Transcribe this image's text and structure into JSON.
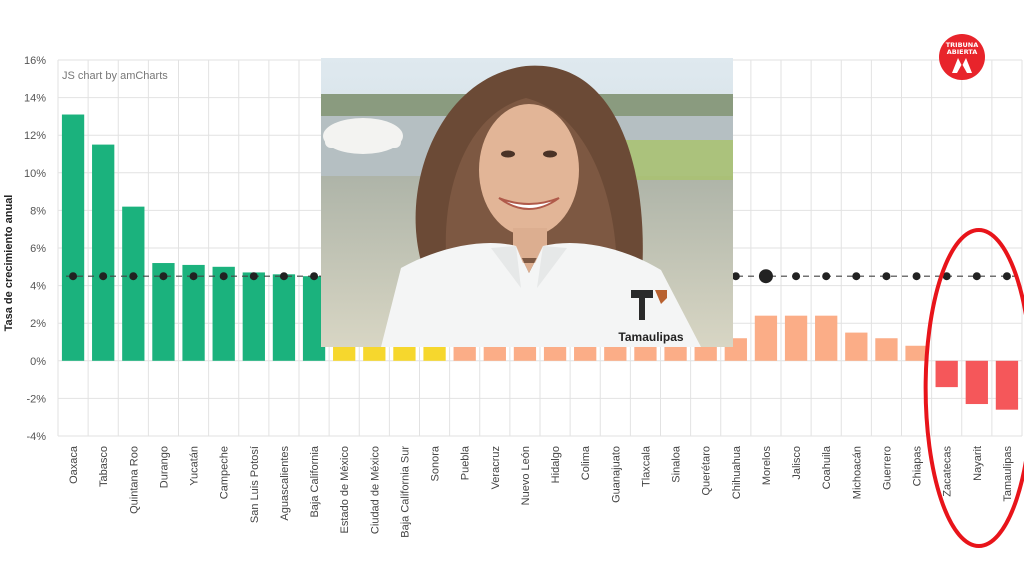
{
  "chart_data": {
    "type": "bar",
    "ylabel": "Tasa de crecimiento anual",
    "ylim": [
      -4,
      16
    ],
    "yticks": [
      -4,
      -2,
      0,
      2,
      4,
      6,
      8,
      10,
      12,
      14,
      16
    ],
    "ytick_labels": [
      "-4%",
      "-2%",
      "0%",
      "2%",
      "4%",
      "6%",
      "8%",
      "10%",
      "12%",
      "14%",
      "16%"
    ],
    "categories": [
      "Oaxaca",
      "Tabasco",
      "Quintana Roo",
      "Durango",
      "Yucatán",
      "Campeche",
      "San Luis Potosí",
      "Aguascalientes",
      "Baja California",
      "Estado de México",
      "Ciudad de México",
      "Baja California Sur",
      "Sonora",
      "Puebla",
      "Veracruz",
      "Nuevo León",
      "Hidalgo",
      "Colima",
      "Guanajuato",
      "Tlaxcala",
      "Sinaloa",
      "Querétaro",
      "Chihuahua",
      "Morelos",
      "Jalisco",
      "Coahuila",
      "Michoacán",
      "Guerrero",
      "Chiapas",
      "Zacatecas",
      "Nayarit",
      "Tamaulipas"
    ],
    "values": [
      13.1,
      11.5,
      8.2,
      5.2,
      5.1,
      5.0,
      4.7,
      4.6,
      4.5,
      0.9,
      0.9,
      0.9,
      0.9,
      0.8,
      0.8,
      0.8,
      0.8,
      0.8,
      0.8,
      0.8,
      0.8,
      0.8,
      1.2,
      2.4,
      2.4,
      2.4,
      1.5,
      1.2,
      0.8,
      -1.4,
      -2.3,
      -2.6
    ],
    "colors": [
      "#1bb27d",
      "#1bb27d",
      "#1bb27d",
      "#1bb27d",
      "#1bb27d",
      "#1bb27d",
      "#1bb27d",
      "#1bb27d",
      "#1bb27d",
      "#f6d72d",
      "#f6d72d",
      "#f6d72d",
      "#f6d72d",
      "#fbad87",
      "#fbad87",
      "#fbad87",
      "#fbad87",
      "#fbad87",
      "#fbad87",
      "#fbad87",
      "#fbad87",
      "#fbad87",
      "#fbad87",
      "#fbad87",
      "#fbad87",
      "#fbad87",
      "#fbad87",
      "#fbad87",
      "#fbad87",
      "#f5575a",
      "#f5575a",
      "#f5575a"
    ],
    "reference_line": {
      "value": 4.5,
      "style": "dashed"
    },
    "grid": true,
    "credit": "JS chart by amCharts"
  },
  "overlay": {
    "photo_shirt_text": "Tamaulipas",
    "logo_line1": "TRIBUNA",
    "logo_line2": "ABIERTA",
    "colors": {
      "highlight_ellipse": "#e8141a",
      "logo": "#e8242b"
    }
  }
}
